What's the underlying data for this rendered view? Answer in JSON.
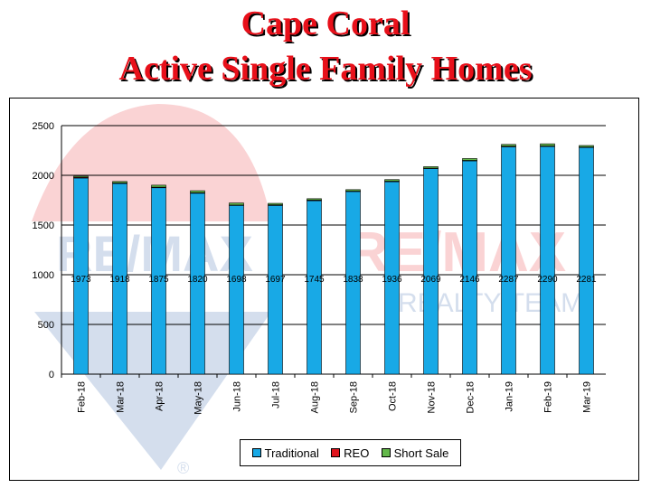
{
  "title_line1": "Cape Coral",
  "title_line2": "Active Single Family Homes",
  "watermark": {
    "brand": "RE/MAX",
    "subtitle": "REALTY TEAM",
    "mark": "®"
  },
  "chart_data": {
    "type": "bar",
    "stacked": true,
    "categories": [
      "Feb-18",
      "Mar-18",
      "Apr-18",
      "May-18",
      "Jun-18",
      "Jul-18",
      "Aug-18",
      "Sep-18",
      "Oct-18",
      "Nov-18",
      "Dec-18",
      "Jan-19",
      "Feb-19",
      "Mar-19"
    ],
    "series": [
      {
        "name": "Traditional",
        "color": "#18a9e6",
        "values": [
          1973,
          1918,
          1875,
          1820,
          1698,
          1697,
          1745,
          1838,
          1936,
          2069,
          2146,
          2287,
          2290,
          2281
        ]
      },
      {
        "name": "REO",
        "color": "#e0141e",
        "values": [
          7,
          5,
          6,
          5,
          3,
          6,
          6,
          3,
          5,
          3,
          4,
          6,
          5,
          3
        ]
      },
      {
        "name": "Short Sale",
        "color": "#63b84a",
        "values": [
          11,
          15,
          20,
          20,
          21,
          15,
          14,
          15,
          16,
          15,
          19,
          18,
          22,
          16
        ]
      }
    ],
    "traditional_labels": [
      "1973",
      "1918",
      "1875",
      "1820",
      "1698",
      "1697",
      "1745",
      "1838",
      "1936",
      "2069",
      "2146",
      "2287",
      "2290",
      "2281"
    ],
    "ylim": [
      0,
      2500
    ],
    "yticks": [
      "0",
      "500",
      "1000",
      "1500",
      "2000",
      "2500"
    ],
    "grid": true,
    "legend_position": "bottom"
  }
}
